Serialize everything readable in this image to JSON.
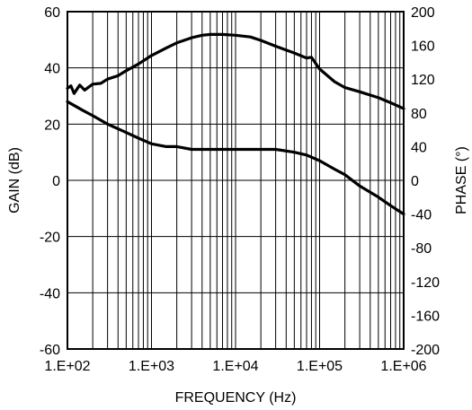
{
  "chart_data": {
    "type": "line",
    "title": "",
    "xlabel": "FREQUENCY (Hz)",
    "ylabel": "GAIN (dB)",
    "y2label": "PHASE (°)",
    "x_scale": "log",
    "xlim": [
      100,
      1000000
    ],
    "ylim": [
      -60,
      60
    ],
    "y2lim": [
      -200,
      200
    ],
    "x_ticks": [
      {
        "value": 100,
        "label": "1.E+02"
      },
      {
        "value": 1000,
        "label": "1.E+03"
      },
      {
        "value": 10000,
        "label": "1.E+04"
      },
      {
        "value": 100000,
        "label": "1.E+05"
      },
      {
        "value": 1000000,
        "label": "1.E+06"
      }
    ],
    "y_ticks": [
      {
        "value": 60,
        "label": "60"
      },
      {
        "value": 40,
        "label": "40"
      },
      {
        "value": 20,
        "label": "20"
      },
      {
        "value": 0,
        "label": "0"
      },
      {
        "value": -20,
        "label": "-20"
      },
      {
        "value": -40,
        "label": "-40"
      },
      {
        "value": -60,
        "label": "-60"
      }
    ],
    "y2_ticks": [
      {
        "value": 200,
        "label": "200"
      },
      {
        "value": 160,
        "label": "160"
      },
      {
        "value": 120,
        "label": "120"
      },
      {
        "value": 80,
        "label": "80"
      },
      {
        "value": 40,
        "label": "40"
      },
      {
        "value": 0,
        "label": "0"
      },
      {
        "value": -40,
        "label": "-40"
      },
      {
        "value": -80,
        "label": "-80"
      },
      {
        "value": -120,
        "label": "-120"
      },
      {
        "value": -160,
        "label": "-160"
      },
      {
        "value": -200,
        "label": "-200"
      }
    ],
    "grid": true,
    "series": [
      {
        "axis": "phase",
        "color": "#000000",
        "x": [
          100,
          110,
          120,
          140,
          160,
          200,
          250,
          300,
          400,
          500,
          700,
          1000,
          1500,
          2000,
          3000,
          4000,
          5000,
          7000,
          10000,
          15000,
          20000,
          30000,
          50000,
          70000,
          80000,
          100000,
          150000,
          200000,
          300000,
          500000,
          700000,
          1000000
        ],
        "y": [
          109,
          112,
          103,
          113,
          107,
          114,
          115,
          120,
          124,
          130,
          138,
          148,
          157,
          163,
          169,
          172,
          173,
          173,
          172,
          170,
          166,
          159,
          151,
          145,
          146,
          132,
          117,
          110,
          105,
          98,
          92,
          85
        ]
      },
      {
        "axis": "gain",
        "color": "#000000",
        "x": [
          100,
          150,
          200,
          300,
          500,
          700,
          1000,
          1500,
          2000,
          3000,
          5000,
          10000,
          30000,
          50000,
          70000,
          100000,
          150000,
          200000,
          300000,
          500000,
          700000,
          1000000
        ],
        "y": [
          28,
          25,
          23,
          20,
          17,
          15,
          13,
          12,
          12,
          11,
          11,
          11,
          11,
          10,
          9,
          7,
          4,
          2,
          -2,
          -6,
          -9,
          -12
        ]
      }
    ]
  }
}
